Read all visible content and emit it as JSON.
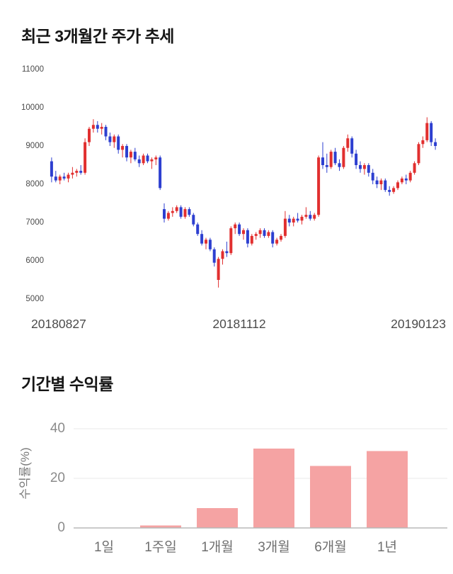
{
  "price_chart": {
    "title": "최근 3개월간 주가 추세"
  },
  "returns_chart": {
    "title": "기간별 수익률"
  },
  "chart_data": [
    {
      "type": "candlestick",
      "title": "최근 3개월간 주가 추세",
      "ylim": [
        5000,
        11000
      ],
      "yticks": [
        5000,
        6000,
        7000,
        8000,
        9000,
        10000,
        11000
      ],
      "x_labels": [
        "20180827",
        "20181112",
        "20190123"
      ],
      "up_color": "#e12f2f",
      "down_color": "#2d3fd0",
      "candles": [
        [
          8600,
          8700,
          8050,
          8200
        ],
        [
          8200,
          8350,
          8050,
          8100
        ],
        [
          8100,
          8250,
          8000,
          8200
        ],
        [
          8200,
          8300,
          8100,
          8150
        ],
        [
          8150,
          8300,
          8050,
          8250
        ],
        [
          8250,
          8450,
          8150,
          8300
        ],
        [
          8300,
          8400,
          8200,
          8350
        ],
        [
          8350,
          8500,
          8250,
          8300
        ],
        [
          8300,
          9200,
          8250,
          9100
        ],
        [
          9100,
          9500,
          9000,
          9450
        ],
        [
          9450,
          9700,
          9350,
          9550
        ],
        [
          9550,
          9650,
          9350,
          9450
        ],
        [
          9450,
          9600,
          9300,
          9500
        ],
        [
          9500,
          9550,
          9150,
          9250
        ],
        [
          9250,
          9350,
          9000,
          9100
        ],
        [
          9100,
          9300,
          8950,
          9250
        ],
        [
          9250,
          9300,
          8800,
          8900
        ],
        [
          8900,
          9050,
          8700,
          9000
        ],
        [
          9000,
          9050,
          8600,
          8700
        ],
        [
          8700,
          8900,
          8550,
          8850
        ],
        [
          8850,
          8950,
          8600,
          8650
        ],
        [
          8650,
          8750,
          8450,
          8550
        ],
        [
          8550,
          8800,
          8500,
          8750
        ],
        [
          8750,
          8800,
          8550,
          8600
        ],
        [
          8600,
          8700,
          8400,
          8650
        ],
        [
          8650,
          8750,
          8500,
          8700
        ],
        [
          8700,
          8750,
          7850,
          7900
        ],
        [
          7350,
          7500,
          7000,
          7100
        ],
        [
          7100,
          7300,
          7050,
          7250
        ],
        [
          7250,
          7400,
          7150,
          7300
        ],
        [
          7300,
          7450,
          7250,
          7400
        ],
        [
          7400,
          7450,
          7100,
          7150
        ],
        [
          7150,
          7400,
          7100,
          7350
        ],
        [
          7350,
          7400,
          7150,
          7200
        ],
        [
          7200,
          7250,
          6900,
          6950
        ],
        [
          6950,
          7000,
          6650,
          6700
        ],
        [
          6700,
          6800,
          6400,
          6450
        ],
        [
          6450,
          6600,
          6300,
          6550
        ],
        [
          6550,
          6600,
          6250,
          6300
        ],
        [
          6300,
          6350,
          5850,
          5950
        ],
        [
          5500,
          6100,
          5300,
          6050
        ],
        [
          6050,
          6300,
          5900,
          6250
        ],
        [
          6250,
          6500,
          6100,
          6200
        ],
        [
          6200,
          6900,
          6150,
          6850
        ],
        [
          6850,
          7000,
          6700,
          6950
        ],
        [
          6950,
          7000,
          6650,
          6700
        ],
        [
          6700,
          6850,
          6550,
          6800
        ],
        [
          6800,
          6850,
          6350,
          6450
        ],
        [
          6450,
          6700,
          6400,
          6650
        ],
        [
          6650,
          6750,
          6550,
          6700
        ],
        [
          6700,
          6850,
          6600,
          6800
        ],
        [
          6800,
          6850,
          6600,
          6650
        ],
        [
          6650,
          6800,
          6600,
          6750
        ],
        [
          6750,
          6800,
          6350,
          6450
        ],
        [
          6450,
          6600,
          6400,
          6550
        ],
        [
          6550,
          6700,
          6500,
          6650
        ],
        [
          6650,
          7300,
          6600,
          7100
        ],
        [
          7100,
          7200,
          6900,
          7000
        ],
        [
          7000,
          7150,
          6900,
          7100
        ],
        [
          7100,
          7250,
          7000,
          7050
        ],
        [
          7050,
          7200,
          6950,
          7150
        ],
        [
          7150,
          7400,
          7100,
          7200
        ],
        [
          7200,
          7300,
          7050,
          7100
        ],
        [
          7100,
          7250,
          7050,
          7200
        ],
        [
          7200,
          8750,
          7150,
          8700
        ],
        [
          8700,
          9100,
          8400,
          8500
        ],
        [
          8500,
          8800,
          8300,
          8450
        ],
        [
          8450,
          8900,
          8400,
          8850
        ],
        [
          8850,
          8950,
          8500,
          8550
        ],
        [
          8550,
          8650,
          8350,
          8450
        ],
        [
          8450,
          9000,
          8400,
          8950
        ],
        [
          8950,
          9300,
          8850,
          9200
        ],
        [
          9200,
          9250,
          8700,
          8800
        ],
        [
          8800,
          8900,
          8400,
          8500
        ],
        [
          8500,
          8600,
          8300,
          8400
        ],
        [
          8400,
          8550,
          8250,
          8500
        ],
        [
          8500,
          8550,
          8200,
          8300
        ],
        [
          8300,
          8400,
          8000,
          8100
        ],
        [
          8100,
          8200,
          7900,
          8000
        ],
        [
          8000,
          8150,
          7850,
          8100
        ],
        [
          8100,
          8150,
          7800,
          7850
        ],
        [
          7850,
          7950,
          7700,
          7800
        ],
        [
          7800,
          7950,
          7750,
          7900
        ],
        [
          7900,
          8100,
          7850,
          8050
        ],
        [
          8050,
          8200,
          8000,
          8150
        ],
        [
          8150,
          8250,
          8000,
          8100
        ],
        [
          8100,
          8350,
          8050,
          8300
        ],
        [
          8300,
          8600,
          8250,
          8550
        ],
        [
          8550,
          9100,
          8500,
          9050
        ],
        [
          9050,
          9250,
          8950,
          9150
        ],
        [
          9150,
          9750,
          9100,
          9600
        ],
        [
          9600,
          9650,
          9000,
          9100
        ],
        [
          9100,
          9200,
          8900,
          9000
        ]
      ]
    },
    {
      "type": "bar",
      "title": "기간별 수익률",
      "ylabel": "수익률(%)",
      "categories": [
        "1일",
        "1주일",
        "1개월",
        "3개월",
        "6개월",
        "1년"
      ],
      "values": [
        0,
        1,
        8,
        32,
        25,
        31
      ],
      "ylim": [
        0,
        40
      ],
      "yticks": [
        0,
        20,
        40
      ],
      "bar_color": "#f5a3a3",
      "grid_color": "#e8e8e8",
      "axis_color": "#b8b8b8",
      "legend": "none",
      "grid": true
    }
  ]
}
